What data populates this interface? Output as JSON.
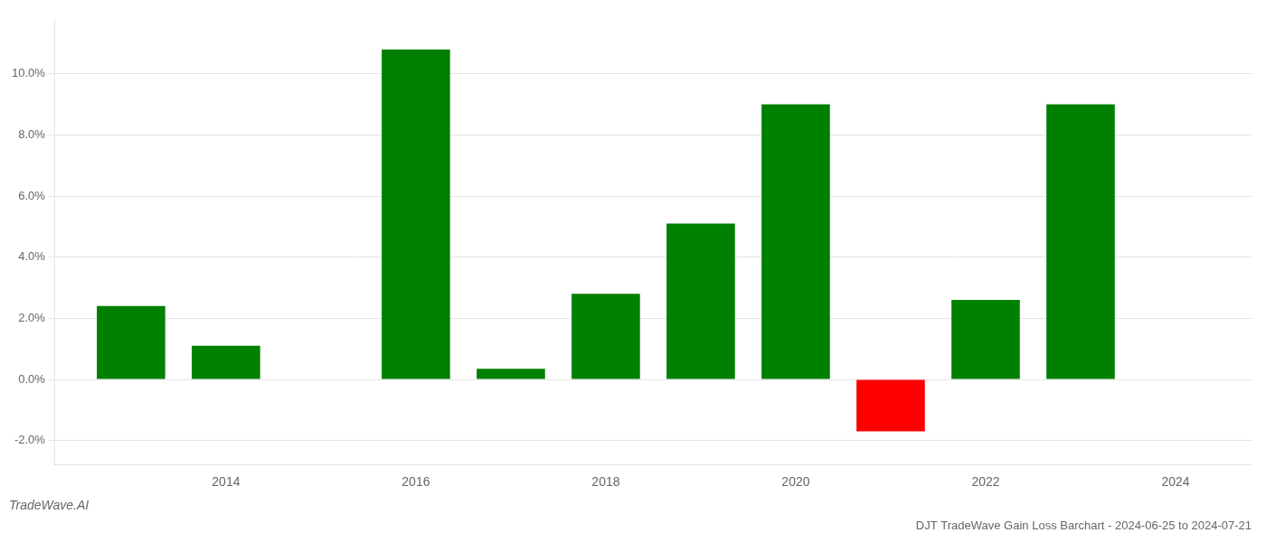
{
  "chart_data": {
    "type": "bar",
    "title": "DJT TradeWave Gain Loss Barchart - 2024-06-25 to 2024-07-21",
    "annotations": [
      "TradeWave.AI"
    ],
    "x": [
      2013,
      2014,
      2016,
      2017,
      2018,
      2019,
      2020,
      2021,
      2022,
      2023
    ],
    "values": [
      0.024,
      0.011,
      0.108,
      0.0035,
      0.028,
      0.051,
      0.09,
      -0.017,
      0.026,
      0.09
    ],
    "colors": [
      "#008000",
      "#008000",
      "#008000",
      "#008000",
      "#008000",
      "#008000",
      "#008000",
      "#ff0000",
      "#008000",
      "#008000"
    ],
    "xlim": [
      2012.2,
      2024.8
    ],
    "xticks": [
      2014,
      2016,
      2018,
      2020,
      2022,
      2024
    ],
    "ylim": [
      -0.028,
      0.118
    ],
    "yticks": [
      {
        "value": -0.02,
        "label": "-2.0%"
      },
      {
        "value": 0.0,
        "label": "0.0%"
      },
      {
        "value": 0.02,
        "label": "2.0%"
      },
      {
        "value": 0.04,
        "label": "4.0%"
      },
      {
        "value": 0.06,
        "label": "6.0%"
      },
      {
        "value": 0.08,
        "label": "8.0%"
      },
      {
        "value": 0.1,
        "label": "10.0%"
      }
    ],
    "grid": true
  }
}
